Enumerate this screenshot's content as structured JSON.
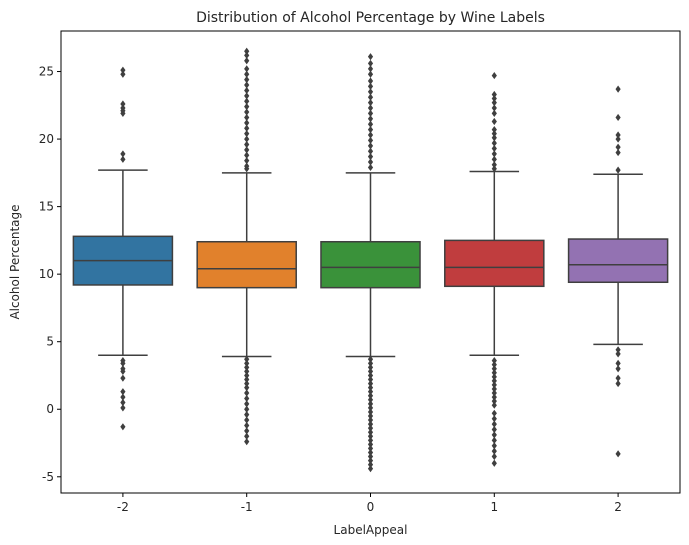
{
  "chart_data": {
    "type": "box",
    "title": "Distribution of Alcohol Percentage by Wine Labels",
    "xlabel": "LabelAppeal",
    "ylabel": "Alcohol Percentage",
    "ylim": [
      -6.2,
      28
    ],
    "yticks": [
      -5,
      0,
      5,
      10,
      15,
      20,
      25
    ],
    "grid": false,
    "categories": [
      "-2",
      "-1",
      "0",
      "1",
      "2"
    ],
    "boxes": [
      {
        "category": "-2",
        "color": "#3274a1",
        "whisker_low": 4.0,
        "q1": 9.2,
        "median": 11.0,
        "q3": 12.8,
        "whisker_high": 17.7,
        "outliers": [
          25.1,
          24.8,
          22.6,
          22.3,
          22.1,
          21.9,
          18.9,
          18.5,
          3.6,
          3.4,
          3.0,
          2.8,
          2.3,
          1.3,
          0.9,
          0.5,
          0.1,
          -1.3
        ]
      },
      {
        "category": "-1",
        "color": "#e1812c",
        "whisker_low": 3.9,
        "q1": 9.0,
        "median": 10.4,
        "q3": 12.4,
        "whisker_high": 17.5,
        "outliers": [
          26.5,
          26.2,
          25.8,
          25.2,
          24.8,
          24.4,
          24.0,
          23.6,
          23.2,
          22.8,
          22.4,
          22.0,
          21.6,
          21.2,
          20.8,
          20.4,
          20.0,
          19.6,
          19.2,
          18.8,
          18.4,
          18.0,
          17.8,
          3.7,
          3.4,
          3.1,
          2.8,
          2.5,
          2.2,
          1.9,
          1.6,
          1.2,
          0.8,
          0.4,
          0.0,
          -0.4,
          -0.8,
          -1.2,
          -1.6,
          -2.0,
          -2.4
        ]
      },
      {
        "category": "0",
        "color": "#3a923a",
        "whisker_low": 3.9,
        "q1": 9.0,
        "median": 10.5,
        "q3": 12.4,
        "whisker_high": 17.5,
        "outliers": [
          26.1,
          25.6,
          25.2,
          24.8,
          24.3,
          23.9,
          23.5,
          23.1,
          22.7,
          22.3,
          21.9,
          21.5,
          21.1,
          20.7,
          20.3,
          19.9,
          19.5,
          19.1,
          18.7,
          18.3,
          17.9,
          3.7,
          3.4,
          3.1,
          2.8,
          2.5,
          2.2,
          1.9,
          1.6,
          1.3,
          1.0,
          0.7,
          0.4,
          0.1,
          -0.2,
          -0.5,
          -0.8,
          -1.1,
          -1.4,
          -1.7,
          -2.0,
          -2.3,
          -2.6,
          -2.9,
          -3.2,
          -3.5,
          -3.8,
          -4.1,
          -4.4
        ]
      },
      {
        "category": "1",
        "color": "#c03d3e",
        "whisker_low": 4.0,
        "q1": 9.1,
        "median": 10.5,
        "q3": 12.5,
        "whisker_high": 17.6,
        "outliers": [
          24.7,
          23.3,
          23.0,
          22.7,
          22.3,
          21.9,
          21.3,
          20.7,
          20.4,
          20.1,
          19.7,
          19.3,
          18.9,
          18.5,
          18.1,
          17.8,
          3.6,
          3.3,
          3.0,
          2.7,
          2.4,
          2.1,
          1.8,
          1.5,
          1.2,
          0.9,
          0.6,
          0.3,
          -0.3,
          -0.7,
          -1.1,
          -1.5,
          -1.9,
          -2.3,
          -2.7,
          -3.1,
          -3.5,
          -4.0
        ]
      },
      {
        "category": "2",
        "color": "#9372b2",
        "whisker_low": 4.8,
        "q1": 9.4,
        "median": 10.7,
        "q3": 12.6,
        "whisker_high": 17.4,
        "outliers": [
          23.7,
          21.6,
          20.3,
          20.0,
          19.4,
          19.0,
          17.7,
          4.4,
          4.1,
          3.4,
          3.0,
          2.3,
          1.9,
          -3.3
        ]
      }
    ]
  }
}
